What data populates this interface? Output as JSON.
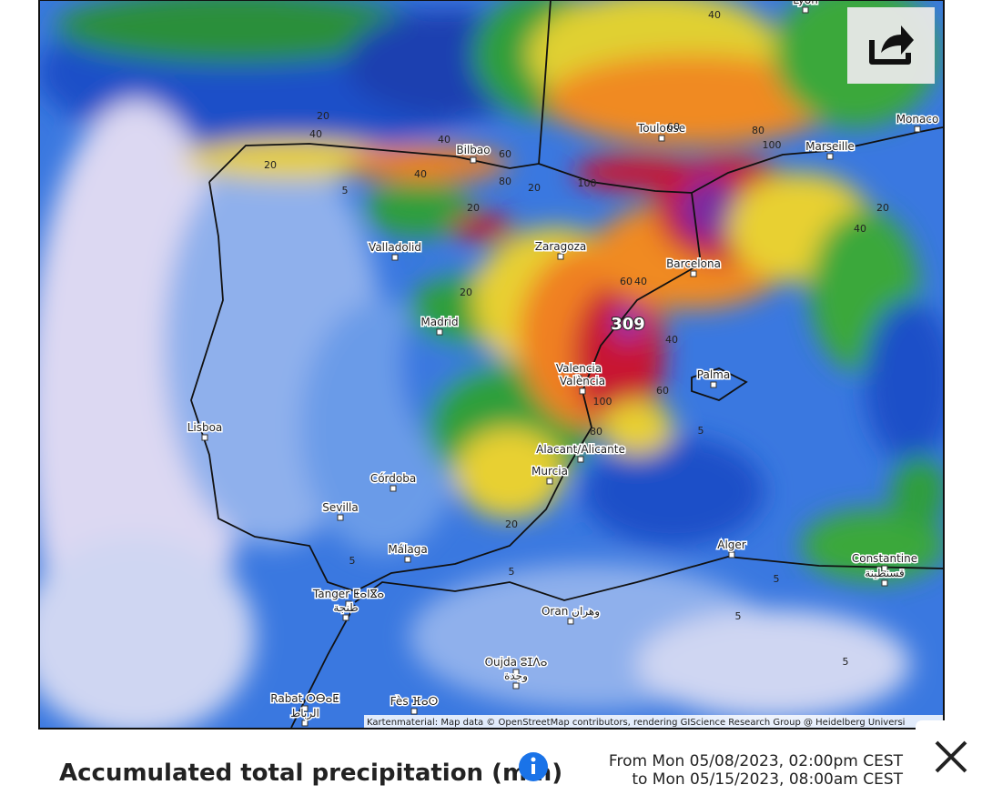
{
  "map": {
    "cities": [
      "Lyon",
      "Toulouse",
      "Monaco",
      "Marseille",
      "Bilbao",
      "Valladolid",
      "Zaragoza",
      "Barcelona",
      "Madrid",
      "Valencia",
      "València",
      "Palma",
      "Lisboa",
      "Alacant/Alicante",
      "Murcia",
      "Córdoba",
      "Sevilla",
      "Málaga",
      "Alger",
      "Constantine",
      "قسنطينة",
      "Tanger ⵟⴰⵏⴵⴰ",
      "طنجة",
      "Oran وهران",
      "Oujda ⵓⵊⴷⴰ",
      "وجدة",
      "Rabat ⵔⴱⴰⵟ",
      "الرباط",
      "Fès ⴼⴰⵙ"
    ],
    "contour_labels": [
      "20",
      "40",
      "40",
      "20",
      "40",
      "60",
      "80",
      "20",
      "40",
      "60",
      "80",
      "100",
      "100",
      "40",
      "20",
      "5",
      "20",
      "20",
      "60",
      "40",
      "40",
      "60",
      "100",
      "80",
      "5",
      "20",
      "5",
      "5",
      "5",
      "5",
      "5"
    ],
    "max_label": "309",
    "attribution": "Kartenmaterial: Map data © OpenStreetMap contributors, rendering GIScience Research Group @ Heidelberg Universi"
  },
  "footer": {
    "title": "Accumulated total precipitation (mm)",
    "from": "From Mon 05/08/2023, 02:00pm CEST",
    "to": "to Mon 05/15/2023, 08:00am CEST"
  }
}
